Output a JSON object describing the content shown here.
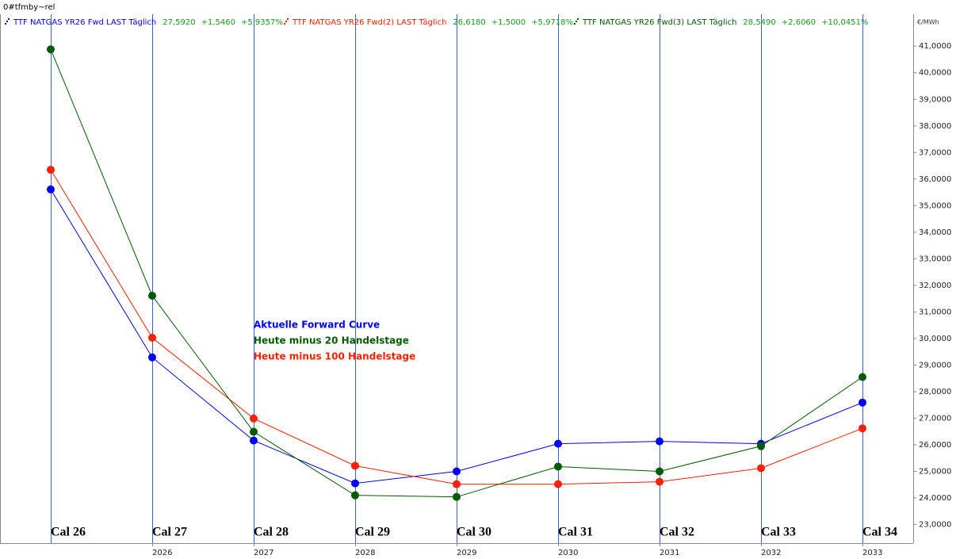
{
  "chart_data": {
    "type": "line",
    "title": "0#tfmby~rel",
    "unit_label": "€/MWh",
    "categories": [
      "Cal 26",
      "Cal 27",
      "Cal 28",
      "Cal 29",
      "Cal 30",
      "Cal 31",
      "Cal 32",
      "Cal 33",
      "Cal 34"
    ],
    "x_axis_labels": [
      null,
      "2026",
      "2027",
      "2028",
      "2029",
      "2030",
      "2031",
      "2032",
      "2033"
    ],
    "series": [
      {
        "name": "TTF NATGAS YR26 Fwd LAST Täglich",
        "color": "#0000ff",
        "header_values": [
          "27,5920",
          "+1,5460",
          "+5,9357%"
        ],
        "values": [
          35.61,
          29.29,
          26.16,
          24.55,
          25.0,
          26.04,
          26.13,
          26.04,
          27.59
        ]
      },
      {
        "name": "TTF NATGAS YR26 Fwd(2) LAST Täglich",
        "color": "#ff2000",
        "header_values": [
          "26,6180",
          "+1,5000",
          "+5,9718%"
        ],
        "values": [
          36.35,
          30.03,
          26.99,
          25.21,
          24.52,
          24.52,
          24.61,
          25.12,
          26.62
        ]
      },
      {
        "name": "TTF NATGAS YR26 Fwd(3) LAST Täglich",
        "color": "#005a00",
        "header_values": [
          "28,5490",
          "+2,6060",
          "+10,0451%"
        ],
        "values": [
          40.88,
          31.61,
          26.49,
          24.1,
          24.04,
          25.18,
          25.0,
          25.95,
          28.55
        ]
      }
    ],
    "annotations": [
      {
        "text": "Aktuelle Forward Curve",
        "color": "#0000ff"
      },
      {
        "text": "Heute minus 20 Handelstage",
        "color": "#005a00"
      },
      {
        "text": "Heute minus 100 Handelstage",
        "color": "#ff2000"
      }
    ],
    "header_value_color": "#1a9a1a",
    "category_line_color": "#3a5fd9",
    "ylim": [
      22.3,
      42.2
    ],
    "yticks": [
      {
        "value": 23,
        "label": "23,0000"
      },
      {
        "value": 24,
        "label": "24,0000"
      },
      {
        "value": 25,
        "label": "25,0000"
      },
      {
        "value": 26,
        "label": "26,0000"
      },
      {
        "value": 27,
        "label": "27,0000"
      },
      {
        "value": 28,
        "label": "28,0000"
      },
      {
        "value": 29,
        "label": "29,0000"
      },
      {
        "value": 30,
        "label": "30,0000"
      },
      {
        "value": 31,
        "label": "31,0000"
      },
      {
        "value": 32,
        "label": "32,0000"
      },
      {
        "value": 33,
        "label": "33,0000"
      },
      {
        "value": 34,
        "label": "34,0000"
      },
      {
        "value": 35,
        "label": "35,0000"
      },
      {
        "value": 36,
        "label": "36,0000"
      },
      {
        "value": 37,
        "label": "37,0000"
      },
      {
        "value": 38,
        "label": "38,0000"
      },
      {
        "value": 39,
        "label": "39,0000"
      },
      {
        "value": 40,
        "label": "40,0000"
      },
      {
        "value": 41,
        "label": "41,0000"
      }
    ],
    "grid": false
  }
}
